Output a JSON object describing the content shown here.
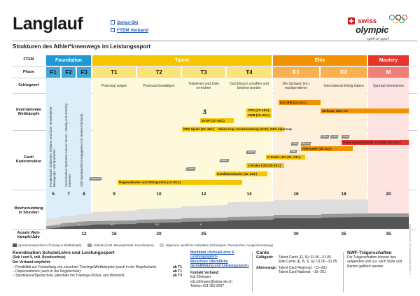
{
  "header": {
    "title": "Langlauf",
    "links": [
      "Swiss-Ski",
      "FTEM Verband"
    ],
    "logo": {
      "swiss": "swiss",
      "olympic": "olympic",
      "spirit": "spirit of sport"
    },
    "subtitle": "Strukturen des Athlet*innenwegs im Leistungssport"
  },
  "rows": {
    "ftem": "FTEM",
    "phase": "Phase",
    "key": "Schlagwort",
    "intl": "Internationale Wettkämpfe",
    "card": "Card/ Kaderstruktur",
    "hours": "Wochenumfang in Stunden",
    "days": "Anzahl Wett-kämpfe/Jahr"
  },
  "groups": [
    {
      "label": "Foundation",
      "color": "#1d9ad6"
    },
    {
      "label": "Talent",
      "color": "#f6c500"
    },
    {
      "label": "Elite",
      "color": "#f39200"
    },
    {
      "label": "Mastery",
      "color": "#e5352d"
    }
  ],
  "phases": [
    {
      "label": "F1",
      "color": "#3aa6dc",
      "text": "#1a1a1a"
    },
    {
      "label": "F2",
      "color": "#3aa6dc",
      "text": "#1a1a1a"
    },
    {
      "label": "F3",
      "color": "#3aa6dc",
      "text": "#1a1a1a"
    },
    {
      "label": "T1",
      "color": "#fde37c",
      "text": "#1a1a1a"
    },
    {
      "label": "T2",
      "color": "#fde37c",
      "text": "#1a1a1a"
    },
    {
      "label": "T3",
      "color": "#fde37c",
      "text": "#1a1a1a"
    },
    {
      "label": "T4",
      "color": "#fde37c",
      "text": "#1a1a1a"
    },
    {
      "label": "E1",
      "color": "#f7b14e",
      "text": "#fff"
    },
    {
      "label": "E2",
      "color": "#f7b14e",
      "text": "#fff"
    },
    {
      "label": "M",
      "color": "#f08077",
      "text": "#fff"
    }
  ],
  "keywords": [
    "Potenzial zeigen",
    "Potenzial bestätigen",
    "Trainieren und Ziele erreichen",
    "Durchbruch schaffen und belohnt werden",
    "Die Schweiz (int.) repräsentieren",
    "International Erfolg haben",
    "Sportart dominieren"
  ],
  "vertical_texts": [
    "Freude/Spaß, Entdecken, Erfahren und Üben verschiedener Bewegungs- und Sportarten",
    "Verschiedene Sportarten kennen lernen. Allseitig und vielseitig trainieren",
    "Sich sportspezifisch engagieren (mit Vereins-/Verband)"
  ],
  "competitions": [
    {
      "label": "U23 WM (21–23J.)",
      "type": "bar"
    },
    {
      "label": "Weltcup, WM, OS",
      "type": "bar"
    },
    {
      "label": "YOG (17–18J.)",
      "type": "bar"
    },
    {
      "label": "JWM (19–20J.)",
      "type": "bar"
    },
    {
      "label": "EYOF (17–18J.)",
      "type": "bar"
    },
    {
      "label": "OPA Spiele (15–16J.)",
      "type": "bar"
    },
    {
      "label": "Swiss Cup, Continentalcup (CoC), OPA Alpencup",
      "type": "bar"
    }
  ],
  "cards": [
    {
      "label": "Nationalmannschaft, A-Kader (ab 23J.)"
    },
    {
      "label": "A/B-Kader (ab 21J.)"
    },
    {
      "label": "C-Kader U24 (21–24J.)"
    },
    {
      "label": "C-Kader U20 (19–20J.)"
    },
    {
      "label": "Kandidatenkader (16–19J.)"
    },
    {
      "label": "Regionalkader und Stützpunkte (13–20J.)"
    }
  ],
  "tags": [
    "Gold",
    "Silber",
    "Gold",
    "Elite",
    "Bronze",
    "Elite",
    "Talent",
    "Talent",
    "Talent",
    "Regional"
  ],
  "hours": [
    "5",
    "7",
    "8",
    "9",
    "10",
    "12",
    "14",
    "16",
    "18",
    "20"
  ],
  "stack_labels": [
    "6,5",
    "6,5",
    "6",
    "1",
    "2",
    "4"
  ],
  "days": [
    "12",
    "16",
    "20",
    "25",
    "30",
    "35",
    "35"
  ],
  "legend": [
    {
      "label": "Sportartenspezifisch (Training & Wettkämpfe)",
      "color": "#555"
    },
    {
      "label": "Athletik (Kraft, Beweglichkeit, Koordination)",
      "color": "#999"
    },
    {
      "label": "Allgemein sportliche Aktivitäten (Schulsport, Pluissporten, Ausgleichstraining)",
      "color": "#ccc"
    }
  ],
  "coordination": {
    "title": "Koordination Schule/Lehre und Leistungssport",
    "subtitle": "(Sek I und II, inkl. Berufsschule)",
    "heading": "Der Verband empfiehlt:",
    "items": [
      {
        "text": "– Flexibilität zur Freistellung von einzelnen Trainings/Wettkämpfen (auch in der Regelschule):",
        "value": "ab T1"
      },
      {
        "text": "– Dispensationen (auch in der Regelschule):",
        "value": "ab T1"
      },
      {
        "text": "– Sportklasse/Sportschule (allenfalls mit Trainings-/Schul- und Wohnort):",
        "value": "ab T3"
      }
    ],
    "links": [
      "Merkblatt «Schule/Lehre & Leistungssport»",
      "Broschüre «Berufliche Grundbildung und Leistungssport»"
    ],
    "contact_title": "Kontakt Verband:",
    "contact": [
      "Edi Zihlmann",
      "edi.zihlmann@swiss-ski.ch",
      "Telefon 031 950 6207"
    ]
  },
  "cards_info": {
    "title": "Cards",
    "validity_label": "Gültigkeit:",
    "validity": [
      "Talent Cards (R, N):  01.06.–31.05.",
      "Elite Cards (E, B, S, G):  01.06.–31.05."
    ],
    "age_label": "Altersrange:",
    "age": [
      "Talent Card Regional:  ~13–20J",
      "Talent Card National:  ~15–20J"
    ]
  },
  "nwf": {
    "title": "NWF-Trägerschaften",
    "text": "Die Trägerschaften können hier aufgerufen und u.a. nach Stufe und Kanton gefiltert werden.",
    "link": "hier"
  },
  "sidenote": "© Swiss Olympic/Swiss-Ski, November 2023"
}
